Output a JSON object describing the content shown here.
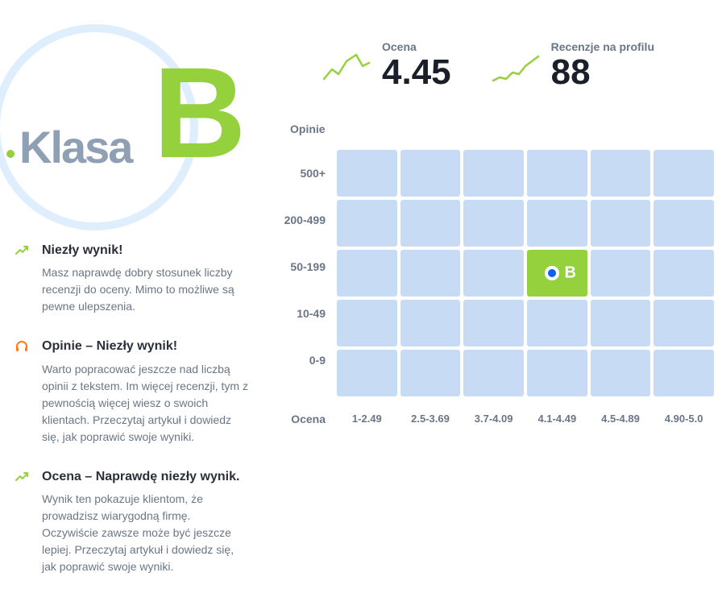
{
  "badge": {
    "label": "Klasa",
    "grade": "B",
    "circle_color": "#dfeefd",
    "accent_color": "#94d13d",
    "label_color": "#8fa0b4"
  },
  "stats": {
    "rating": {
      "label": "Ocena",
      "value": "4.45",
      "spark_color": "#94d13d"
    },
    "reviews": {
      "label": "Recenzje na profilu",
      "value": "88",
      "spark_color": "#94d13d"
    }
  },
  "tips": [
    {
      "icon": "trend-up",
      "icon_color": "#94d13d",
      "title": "Niezły wynik!",
      "desc": "Masz naprawdę dobry stosunek liczby recenzji do oceny. Mimo to możliwe są pewne ulepszenia."
    },
    {
      "icon": "headphones",
      "icon_color": "#ff7a1a",
      "title": "Opinie – Niezły wynik!",
      "desc": "Warto popracować jeszcze nad liczbą opinii z tekstem. Im więcej recenzji, tym z pewnością więcej wiesz o swoich klientach. Przeczytaj artykuł i dowiedz się, jak poprawić swoje wyniki."
    },
    {
      "icon": "trend-up",
      "icon_color": "#94d13d",
      "title": "Ocena – Naprawdę niezły wynik.",
      "desc": "Wynik ten pokazuje klientom, że prowadzisz wiarygodną firmę. Oczywiście zawsze może być jeszcze lepiej. Przeczytaj artykuł i dowiedz się, jak poprawić swoje wyniki."
    }
  ],
  "matrix": {
    "y_axis_title": "Opinie",
    "x_axis_title": "Ocena",
    "y_labels": [
      "500+",
      "200-499",
      "50-199",
      "10-49",
      "0-9"
    ],
    "x_labels": [
      "1-2.49",
      "2.5-3.69",
      "3.7-4.09",
      "4.1-4.49",
      "4.5-4.89",
      "4.90-5.0"
    ],
    "cell_color": "#c8dbf5",
    "active_color": "#94d13d",
    "active_row": 2,
    "active_col": 3,
    "marker_letter": "B",
    "marker_ring_color": "#ffffff",
    "marker_dot_color": "#0f5ef7"
  },
  "colors": {
    "text_primary": "#2a2f3a",
    "text_secondary": "#6a7685",
    "background": "#ffffff"
  }
}
